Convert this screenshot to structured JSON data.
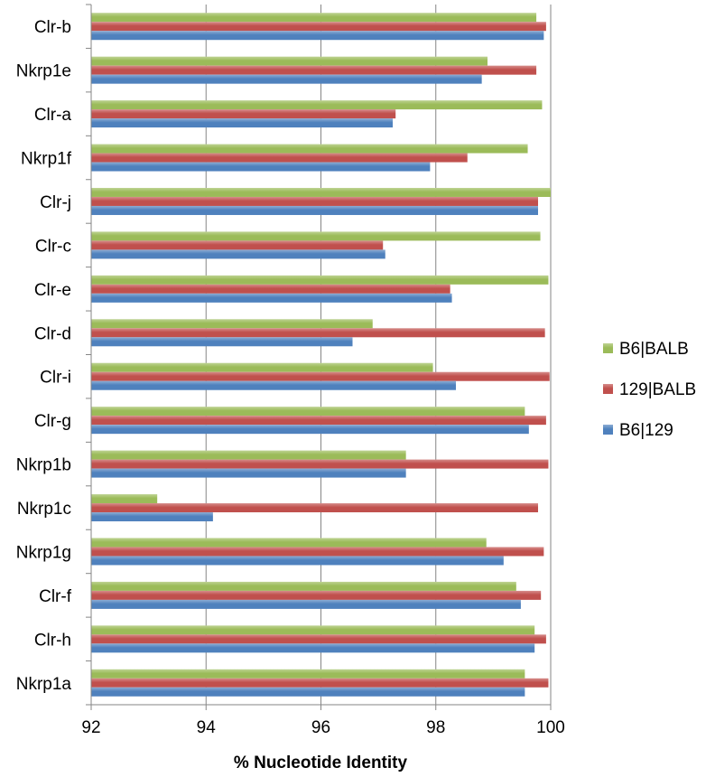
{
  "chart_data": {
    "type": "bar",
    "orientation": "horizontal",
    "categories": [
      "Clr-b",
      "Nkrp1e",
      "Clr-a",
      "Nkrp1f",
      "Clr-j",
      "Clr-c",
      "Clr-e",
      "Clr-d",
      "Clr-i",
      "Clr-g",
      "Nkrp1b",
      "Nkrp1c",
      "Nkrp1g",
      "Clr-f",
      "Clr-h",
      "Nkrp1a"
    ],
    "series": [
      {
        "name": "B6|BALB",
        "color": "#9bbb59",
        "values": [
          99.75,
          98.9,
          99.85,
          99.6,
          100.0,
          99.82,
          99.96,
          96.9,
          97.95,
          99.55,
          97.48,
          93.15,
          98.88,
          99.4,
          99.72,
          99.55
        ]
      },
      {
        "name": "129|BALB",
        "color": "#c0504d",
        "values": [
          99.92,
          99.75,
          97.3,
          98.55,
          99.78,
          97.08,
          98.25,
          99.9,
          99.98,
          99.92,
          99.96,
          99.78,
          99.88,
          99.83,
          99.92,
          99.96
        ]
      },
      {
        "name": "B6|129",
        "color": "#4f81bd",
        "values": [
          99.88,
          98.8,
          97.25,
          97.9,
          99.78,
          97.12,
          98.28,
          96.55,
          98.35,
          99.62,
          97.48,
          94.12,
          99.18,
          99.48,
          99.72,
          99.55
        ]
      }
    ],
    "xlabel": "% Nucleotide Identity",
    "ylabel": "",
    "xlim": [
      92,
      100
    ],
    "xticks": [
      "92",
      "94",
      "96",
      "98",
      "100"
    ],
    "grid": true,
    "legend_position": "right",
    "legend_order": [
      "B6|BALB",
      "129|BALB",
      "B6|129"
    ]
  }
}
